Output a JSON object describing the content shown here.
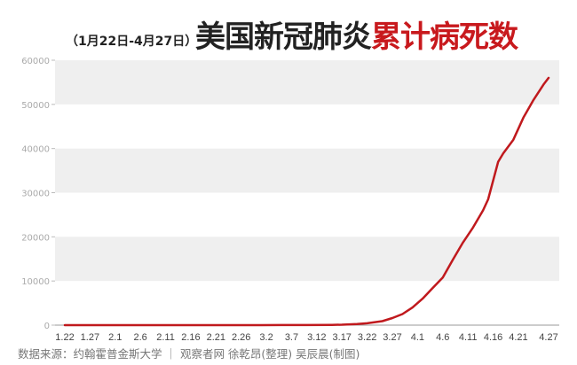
{
  "header": {
    "subtitle": "（1月22日-4月27日）",
    "title_black": "美国新冠肺炎",
    "title_red": "累计病死数"
  },
  "colors": {
    "line": "#c0191d",
    "band": "#efefef",
    "title_red": "#c8191d"
  },
  "footer": {
    "source": "数据来源：约翰霍普金斯大学  ｜  观察者网 徐乾昂(整理)  吴辰晨(制图)"
  },
  "chart_data": {
    "type": "line",
    "ylim": [
      0,
      60000
    ],
    "yticks": [
      0,
      10000,
      20000,
      30000,
      40000,
      50000,
      60000
    ],
    "xlim": [
      "1.22",
      "4.27"
    ],
    "xticks": [
      "1.22",
      "1.27",
      "2.1",
      "2.6",
      "2.11",
      "2.16",
      "2.21",
      "2.26",
      "3.2",
      "3.7",
      "3.12",
      "3.17",
      "3.22",
      "3.27",
      "4.1",
      "4.6",
      "4.11",
      "4.16",
      "4.21",
      "4.27"
    ],
    "grid": "alternating horizontal bands",
    "series": [
      {
        "x": [
          "1.22",
          "2.29",
          "3.1",
          "3.5",
          "3.10",
          "3.15",
          "3.17",
          "3.20",
          "3.22",
          "3.25",
          "3.27",
          "3.29",
          "3.31",
          "4.2",
          "4.4",
          "4.6",
          "4.8",
          "4.10",
          "4.12",
          "4.14",
          "4.15",
          "4.17",
          "4.18",
          "4.20",
          "4.22",
          "4.24",
          "4.26",
          "4.27"
        ],
        "values": [
          0,
          0,
          1,
          12,
          28,
          60,
          100,
          250,
          430,
          900,
          1600,
          2500,
          4000,
          6000,
          8400,
          10800,
          14800,
          18700,
          22100,
          26000,
          28500,
          37000,
          38900,
          42000,
          47000,
          51000,
          54500,
          56000
        ]
      }
    ]
  }
}
